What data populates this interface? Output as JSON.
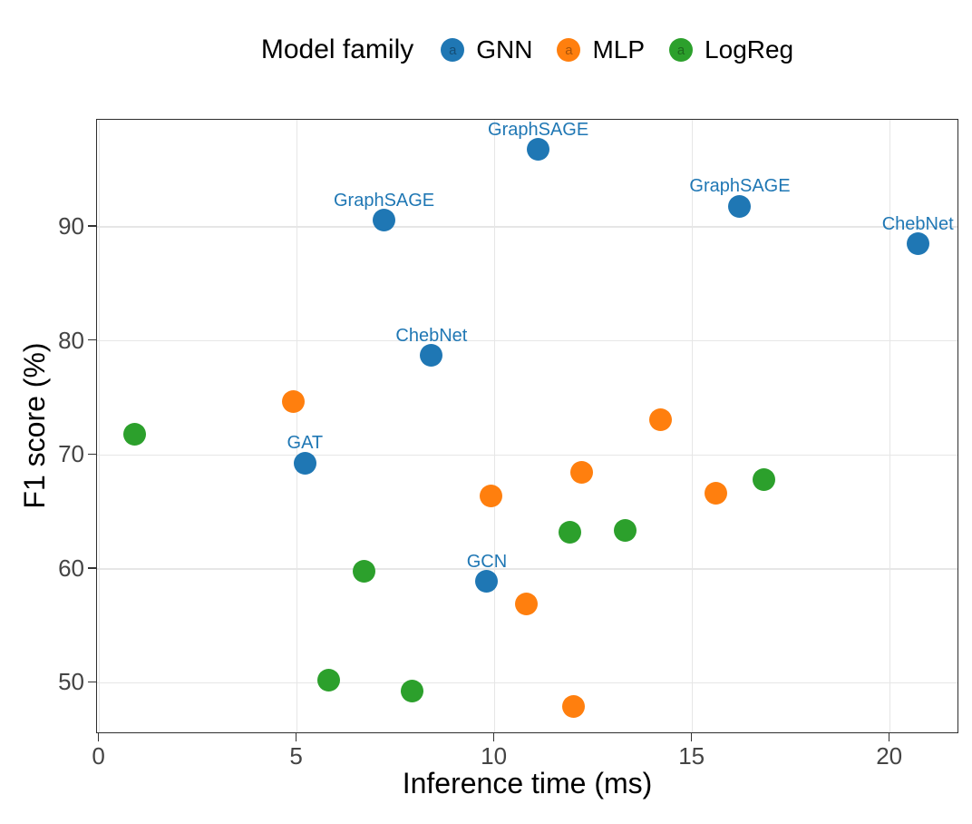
{
  "legend": {
    "title": "Model family",
    "key_glyph": "a",
    "items": [
      {
        "label": "GNN",
        "color": "#1f77b4"
      },
      {
        "label": "MLP",
        "color": "#ff7f0e"
      },
      {
        "label": "LogReg",
        "color": "#2ca02c"
      }
    ]
  },
  "chart_data": {
    "type": "scatter",
    "title": "",
    "xlabel": "Inference time (ms)",
    "ylabel": "F1 score (%)",
    "xlim": [
      -0.06,
      21.75
    ],
    "ylim": [
      45.5,
      99.4
    ],
    "x_ticks": [
      0,
      5,
      10,
      15,
      20
    ],
    "y_ticks": [
      50,
      60,
      70,
      80,
      90
    ],
    "grid": "major-only",
    "legend_position": "top-center",
    "point_label_color": "#1f77b4",
    "series": [
      {
        "name": "GNN",
        "color": "#1f77b4",
        "points": [
          {
            "x": 5.2,
            "y": 69.3,
            "label": "GAT"
          },
          {
            "x": 7.2,
            "y": 90.6,
            "label": "GraphSAGE"
          },
          {
            "x": 8.4,
            "y": 78.7,
            "label": "ChebNet"
          },
          {
            "x": 9.8,
            "y": 58.9,
            "label": "GCN"
          },
          {
            "x": 11.1,
            "y": 96.8,
            "label": "GraphSAGE"
          },
          {
            "x": 16.2,
            "y": 91.8,
            "label": "GraphSAGE"
          },
          {
            "x": 20.7,
            "y": 88.5,
            "label": "ChebNet"
          }
        ]
      },
      {
        "name": "MLP",
        "color": "#ff7f0e",
        "points": [
          {
            "x": 4.9,
            "y": 74.7
          },
          {
            "x": 9.9,
            "y": 66.4
          },
          {
            "x": 10.8,
            "y": 56.9
          },
          {
            "x": 12.0,
            "y": 47.9
          },
          {
            "x": 12.2,
            "y": 68.5
          },
          {
            "x": 14.2,
            "y": 73.1
          },
          {
            "x": 15.6,
            "y": 66.6
          }
        ]
      },
      {
        "name": "LogReg",
        "color": "#2ca02c",
        "points": [
          {
            "x": 0.9,
            "y": 71.8
          },
          {
            "x": 5.8,
            "y": 50.2
          },
          {
            "x": 6.7,
            "y": 59.8
          },
          {
            "x": 7.9,
            "y": 49.3
          },
          {
            "x": 11.9,
            "y": 63.2
          },
          {
            "x": 13.3,
            "y": 63.4
          },
          {
            "x": 16.8,
            "y": 67.8
          }
        ]
      }
    ]
  },
  "style_colors": {
    "grid": "#e6e6e6",
    "panel_border": "#2e2e2e",
    "tick": "#333333",
    "tick_label": "#444444",
    "axis_title": "#000000"
  }
}
